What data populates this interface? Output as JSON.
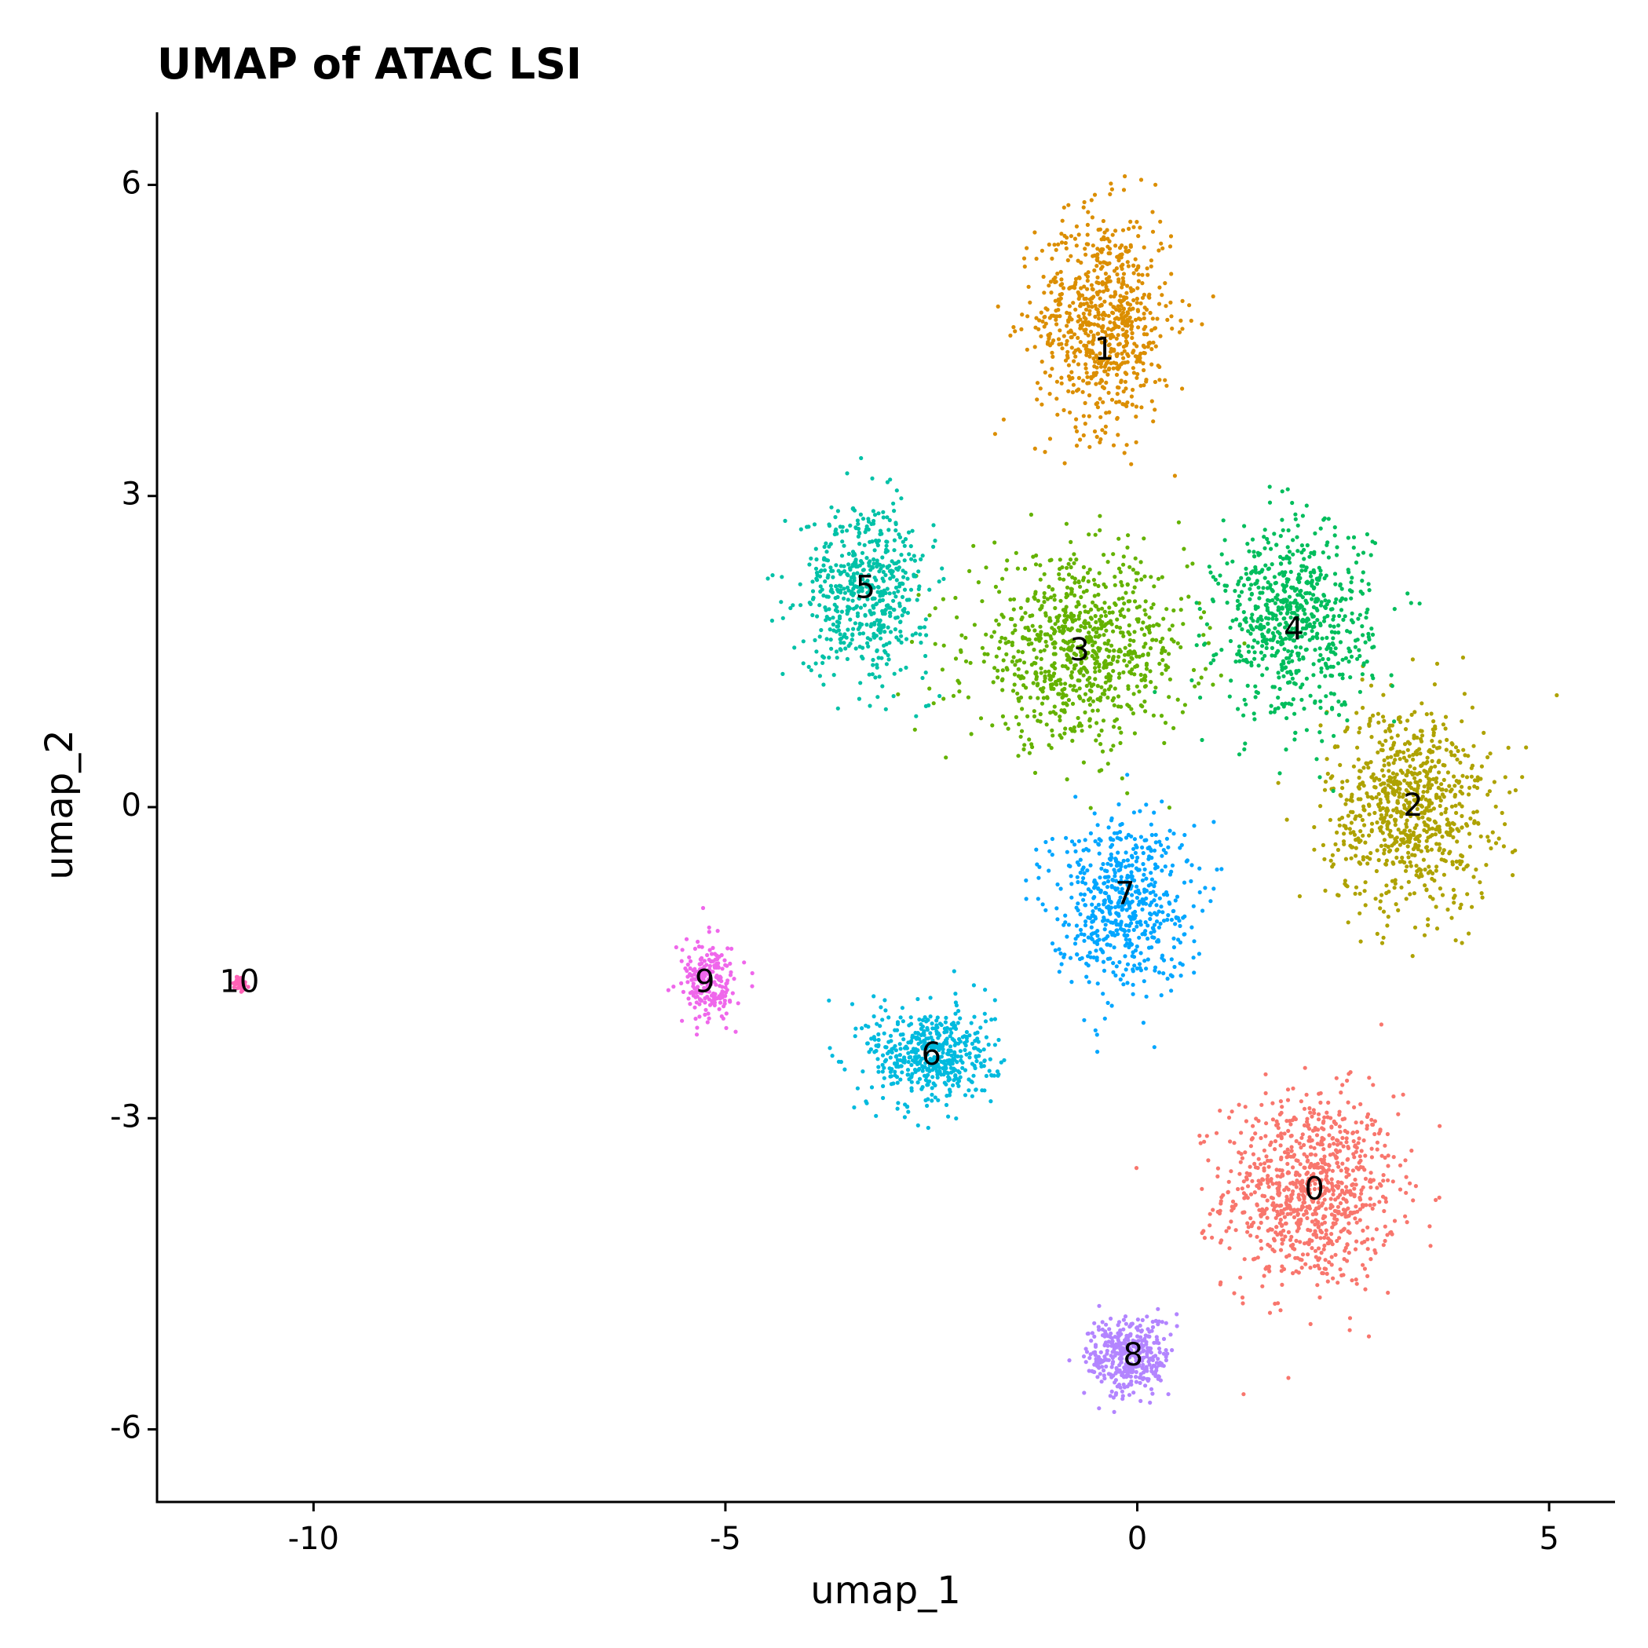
{
  "chart_data": {
    "type": "scatter",
    "title": "UMAP of ATAC LSI",
    "xlabel": "umap_1",
    "ylabel": "umap_2",
    "xlim": [
      -11.9,
      5.8
    ],
    "ylim": [
      -6.7,
      6.7
    ],
    "x_ticks": [
      -10,
      -5,
      0,
      5
    ],
    "x_tick_labels": [
      "-10",
      "-5",
      "0",
      "5"
    ],
    "y_ticks": [
      -6,
      -3,
      0,
      3,
      6
    ],
    "y_tick_labels": [
      "-6",
      "-3",
      "0",
      "3",
      "6"
    ],
    "grid": false,
    "legend": "none",
    "clusters": [
      {
        "label": "0",
        "color": "#F8766D",
        "center": [
          2.1,
          -3.7
        ],
        "spread": [
          0.95,
          0.85
        ],
        "n": 900
      },
      {
        "label": "1",
        "color": "#DB8E00",
        "center": [
          -0.4,
          4.7
        ],
        "spread": [
          0.75,
          0.95
        ],
        "n": 750
      },
      {
        "label": "2",
        "color": "#AEA200",
        "center": [
          3.3,
          0.0
        ],
        "spread": [
          0.9,
          0.9
        ],
        "n": 800
      },
      {
        "label": "3",
        "color": "#64B200",
        "center": [
          -0.7,
          1.5
        ],
        "spread": [
          1.2,
          0.8
        ],
        "n": 850
      },
      {
        "label": "4",
        "color": "#00BD5C",
        "center": [
          1.9,
          1.8
        ],
        "spread": [
          0.85,
          0.85
        ],
        "n": 700
      },
      {
        "label": "5",
        "color": "#00C1A7",
        "center": [
          -3.3,
          2.1
        ],
        "spread": [
          0.7,
          0.75
        ],
        "n": 550
      },
      {
        "label": "6",
        "color": "#00BADE",
        "center": [
          -2.5,
          -2.4
        ],
        "spread": [
          0.7,
          0.45
        ],
        "n": 500
      },
      {
        "label": "7",
        "color": "#00A6FF",
        "center": [
          -0.2,
          -0.9
        ],
        "spread": [
          0.75,
          0.75
        ],
        "n": 600
      },
      {
        "label": "8",
        "color": "#B385FF",
        "center": [
          -0.1,
          -5.3
        ],
        "spread": [
          0.45,
          0.35
        ],
        "n": 380
      },
      {
        "label": "9",
        "color": "#EF67EB",
        "center": [
          -5.2,
          -1.7
        ],
        "spread": [
          0.3,
          0.35
        ],
        "n": 220
      },
      {
        "label": "10",
        "color": "#FF63B6",
        "center": [
          -10.9,
          -1.7
        ],
        "spread": [
          0.08,
          0.07
        ],
        "n": 40
      }
    ],
    "label_positions": [
      {
        "label": "0",
        "x": 2.15,
        "y": -3.7
      },
      {
        "label": "1",
        "x": -0.4,
        "y": 4.4
      },
      {
        "label": "2",
        "x": 3.35,
        "y": 0.0
      },
      {
        "label": "3",
        "x": -0.7,
        "y": 1.5
      },
      {
        "label": "4",
        "x": 1.9,
        "y": 1.7
      },
      {
        "label": "5",
        "x": -3.3,
        "y": 2.1
      },
      {
        "label": "6",
        "x": -2.5,
        "y": -2.4
      },
      {
        "label": "7",
        "x": -0.15,
        "y": -0.85
      },
      {
        "label": "8",
        "x": -0.05,
        "y": -5.3
      },
      {
        "label": "9",
        "x": -5.25,
        "y": -1.7
      },
      {
        "label": "10",
        "x": -10.9,
        "y": -1.7
      }
    ]
  }
}
